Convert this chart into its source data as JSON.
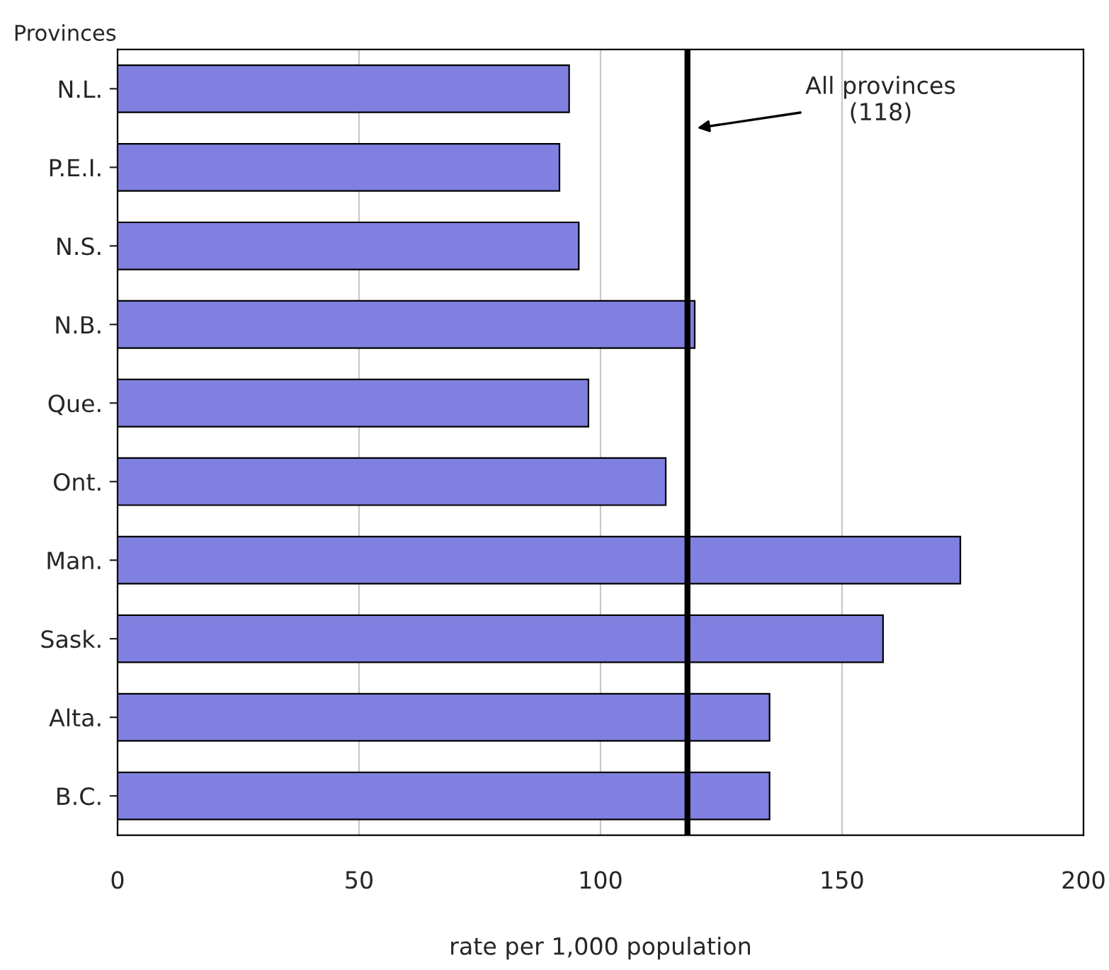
{
  "chart_data": {
    "type": "bar",
    "orientation": "horizontal",
    "ylabel": "Provinces",
    "xlabel": "rate per 1,000 population",
    "categories": [
      "N.L.",
      "P.E.I.",
      "N.S.",
      "N.B.",
      "Que.",
      "Ont.",
      "Man.",
      "Sask.",
      "Alta.",
      "B.C."
    ],
    "values": [
      93.5,
      91.5,
      95.5,
      119.5,
      97.5,
      113.5,
      174.5,
      158.5,
      135,
      135
    ],
    "color": "#8080e0",
    "xlim": [
      0,
      200
    ],
    "xticks": [
      0,
      50,
      100,
      150,
      200
    ],
    "grid": "x",
    "ref_lines": [
      {
        "axis": "x",
        "value": 118,
        "label": "All provinces\n(118)",
        "color": "#000000",
        "line_style": "solid"
      }
    ]
  }
}
